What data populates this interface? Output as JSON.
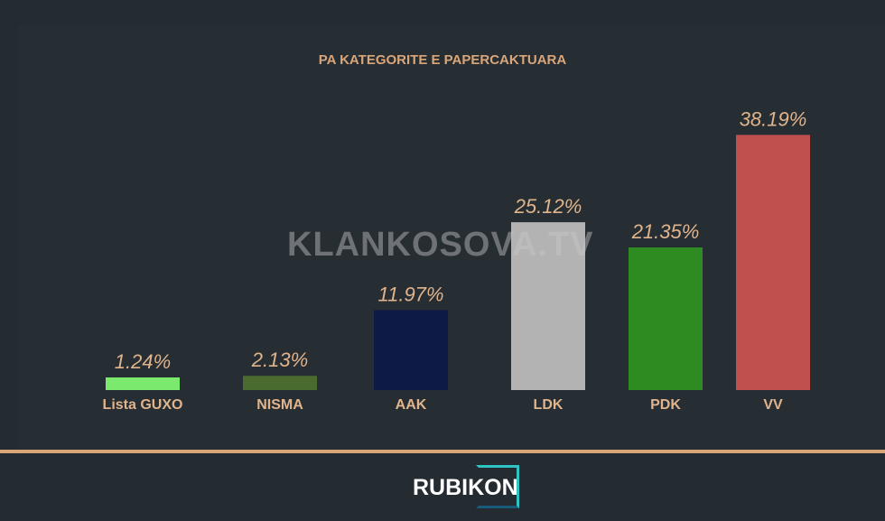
{
  "chart_data": {
    "type": "bar",
    "title": "PA KATEGORITE E PAPERCAKTUARA",
    "categories": [
      "Lista GUXO",
      "NISMA",
      "AAK",
      "LDK",
      "PDK",
      "VV"
    ],
    "values": [
      1.24,
      2.13,
      11.97,
      25.12,
      21.35,
      38.19
    ],
    "data_labels": [
      "1.24%",
      "2.13%",
      "11.97%",
      "25.12%",
      "21.35%",
      "38.19%"
    ],
    "colors": [
      "#7be86e",
      "#4a6b2f",
      "#0d1a45",
      "#b3b3b3",
      "#2e8b22",
      "#c0504d"
    ],
    "grid": false,
    "xlabel": "",
    "ylabel": ""
  },
  "watermark": "KLANKOSOVA.TV",
  "logo": "RUBIKON"
}
